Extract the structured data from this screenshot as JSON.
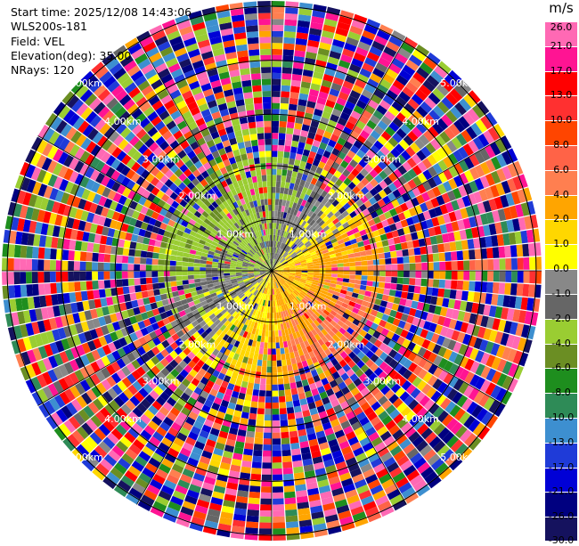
{
  "info": {
    "start_time": "Start time: 2025/12/08 14:43:06",
    "instrument": "WLS200s-181",
    "field": "Field: VEL",
    "elevation": "Elevation(deg): 35.00",
    "nrays": "NRays: 120"
  },
  "chart_data": {
    "type": "ppi_polar",
    "field": "VEL",
    "units": "m/s",
    "n_rays": 120,
    "elevation_deg": 35.0,
    "max_range_km": 5.0,
    "range_ring_labels": [
      "1.00km",
      "2.00km",
      "3.00km",
      "4.00km",
      "5.00km"
    ],
    "colorbar": {
      "unit_label": "m/s",
      "colors": [
        "#15125e",
        "#000080",
        "#0000d6",
        "#1f3bd8",
        "#3d8fd0",
        "#2e8b57",
        "#1e8e1e",
        "#6b8e23",
        "#9acd32",
        "#666666",
        "#888888",
        "#ffff00",
        "#ffd700",
        "#ffa500",
        "#ff7f50",
        "#ff6347",
        "#ff4500",
        "#ff3030",
        "#ff0000",
        "#ff1493",
        "#ff69b4"
      ],
      "tick_labels": [
        "-30.0",
        "-26.0",
        "-21.0",
        "-17.0",
        "-13.0",
        "-10.0",
        "-8.0",
        "-6.0",
        "-4.0",
        "-2.0",
        "-1.0",
        "0.0",
        "1.0",
        "2.0",
        "4.0",
        "6.0",
        "8.0",
        "10.0",
        "13.0",
        "17.0",
        "21.0",
        "26.0"
      ]
    }
  }
}
